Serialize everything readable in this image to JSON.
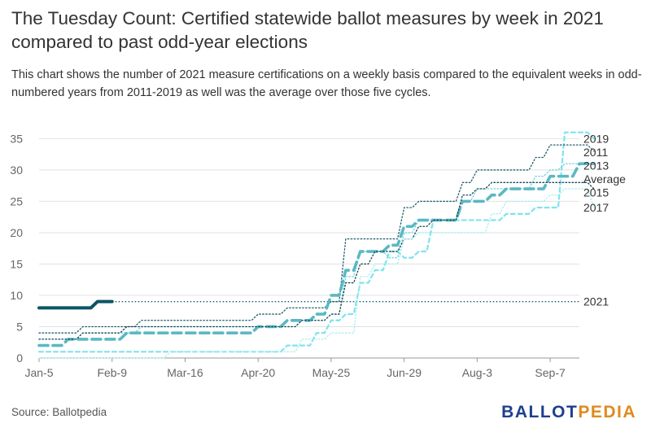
{
  "title": "The Tuesday Count: Certified statewide ballot measures by week in 2021 compared to past odd-year elections",
  "subtitle": "This chart shows the number of 2021 measure certifications on a weekly basis compared to the equivalent weeks in odd-numbered years from 2011-2019 as well was the average over those five cycles.",
  "source": "Source: Ballotpedia",
  "logo": {
    "part1": "BALLOT",
    "part2": "PEDIA"
  },
  "chart_data": {
    "type": "line",
    "title": "The Tuesday Count: Certified statewide ballot measures by week in 2021 compared to past odd-year elections",
    "xlabel": "",
    "ylabel": "",
    "ylim": [
      0,
      37
    ],
    "yticks": [
      0,
      5,
      10,
      15,
      20,
      25,
      30,
      35
    ],
    "xlim": [
      0,
      37
    ],
    "xtick_labels": [
      {
        "week": 0,
        "label": "Jan-5"
      },
      {
        "week": 5,
        "label": "Feb-9"
      },
      {
        "week": 10,
        "label": "Mar-16"
      },
      {
        "week": 15,
        "label": "Apr-20"
      },
      {
        "week": 20,
        "label": "May-25"
      },
      {
        "week": 25,
        "label": "Jun-29"
      },
      {
        "week": 30,
        "label": "Aug-3"
      },
      {
        "week": 35,
        "label": "Sep-7"
      }
    ],
    "grid": true,
    "legend": "line-end labels",
    "series": [
      {
        "name": "2019",
        "color": "#7fe3ee",
        "style": "dash-light",
        "values": [
          1,
          1,
          1,
          1,
          1,
          1,
          1,
          1,
          1,
          1,
          1,
          1,
          1,
          1,
          1,
          1,
          1,
          2,
          2,
          4,
          6,
          7,
          12,
          14,
          17,
          16,
          17,
          22,
          22,
          22,
          22,
          22,
          23,
          23,
          24,
          24,
          36,
          36,
          35
        ]
      },
      {
        "name": "2011",
        "color": "#1f5f6a",
        "style": "dot",
        "values": [
          4,
          4,
          4,
          5,
          5,
          5,
          5,
          6,
          6,
          6,
          6,
          6,
          6,
          6,
          6,
          7,
          7,
          8,
          8,
          8,
          9,
          19,
          19,
          19,
          19,
          24,
          25,
          25,
          25,
          28,
          30,
          30,
          30,
          30,
          32,
          34,
          34,
          34,
          33
        ]
      },
      {
        "name": "2013",
        "color": "#6fd1df",
        "style": "dot",
        "values": [
          3,
          3,
          3,
          4,
          4,
          4,
          4,
          5,
          5,
          5,
          5,
          5,
          5,
          5,
          5,
          5,
          5,
          5,
          6,
          6,
          7,
          13,
          17,
          17,
          16,
          20,
          22,
          22,
          22,
          25,
          27,
          27,
          27,
          27,
          29,
          30,
          31,
          31,
          31
        ]
      },
      {
        "name": "Average",
        "color": "#5bb8c3",
        "style": "dash-thick",
        "values": [
          2,
          2,
          3,
          3,
          3,
          3,
          4,
          4,
          4,
          4,
          4,
          4,
          4,
          4,
          4,
          5,
          5,
          6,
          6,
          7,
          10,
          14,
          17,
          17,
          18,
          21,
          22,
          22,
          22,
          25,
          25,
          26,
          27,
          27,
          27,
          29,
          29,
          31,
          31
        ]
      },
      {
        "name": "2015",
        "color": "#154954",
        "style": "dot",
        "values": [
          3,
          3,
          3,
          4,
          4,
          4,
          5,
          5,
          5,
          5,
          5,
          5,
          5,
          5,
          5,
          5,
          5,
          5,
          6,
          6,
          7,
          12,
          15,
          17,
          17,
          19,
          21,
          22,
          22,
          26,
          27,
          28,
          28,
          28,
          28,
          28,
          28,
          28,
          27
        ]
      },
      {
        "name": "2017",
        "color": "#a8ecf2",
        "style": "dot",
        "values": [
          0,
          0,
          0,
          0,
          0,
          0,
          0,
          0,
          0,
          1,
          1,
          1,
          1,
          1,
          1,
          1,
          1,
          1,
          3,
          3,
          4,
          4,
          13,
          15,
          15,
          19,
          20,
          20,
          20,
          20,
          20,
          23,
          25,
          25,
          25,
          26,
          27,
          27,
          24
        ]
      },
      {
        "name": "2021",
        "color": "#0b5563",
        "style": "solid",
        "values": [
          8,
          8,
          8,
          8,
          9,
          9
        ]
      }
    ],
    "reference_line": {
      "series": "2021",
      "value": 9,
      "style": "dotted"
    }
  }
}
